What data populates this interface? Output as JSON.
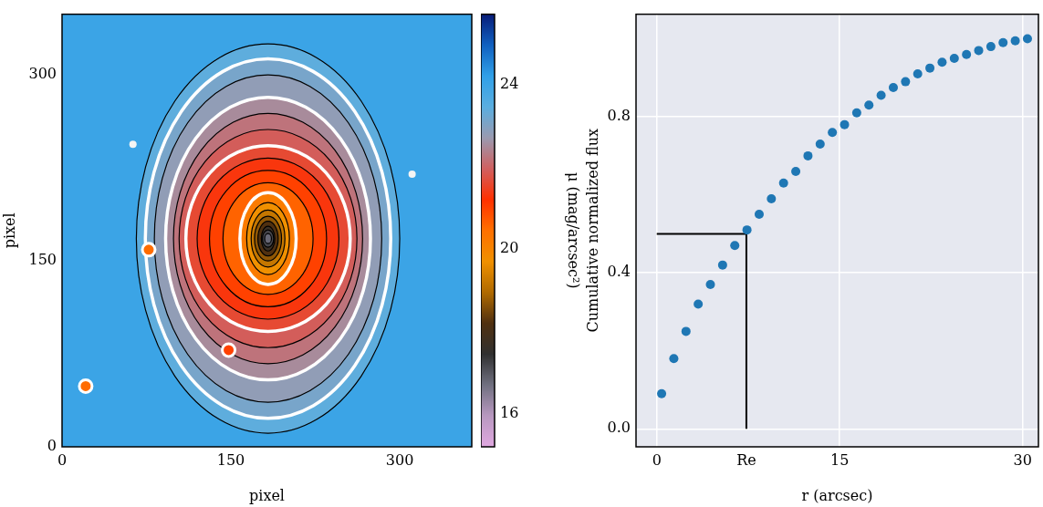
{
  "chart_data": [
    {
      "type": "image",
      "xlabel": "pixel",
      "ylabel": "pixel",
      "xlim": [
        0,
        364
      ],
      "ylim": [
        0,
        349
      ],
      "xticks": [
        0,
        150,
        300
      ],
      "yticks": [
        0,
        150,
        300
      ],
      "grid": false,
      "center": [
        183,
        168
      ],
      "background_mu": 24.0,
      "isophotes": [
        {
          "a": 117,
          "b": 157,
          "mu": 23.4,
          "color": "black"
        },
        {
          "a": 109,
          "b": 145,
          "mu": 23.1,
          "color": "white"
        },
        {
          "a": 101,
          "b": 132,
          "mu": 22.8,
          "color": "black"
        },
        {
          "a": 91,
          "b": 114,
          "mu": 22.5,
          "color": "white"
        },
        {
          "a": 84,
          "b": 101,
          "mu": 22.2,
          "color": "black"
        },
        {
          "a": 79,
          "b": 88,
          "mu": 21.9,
          "color": "black"
        },
        {
          "a": 73,
          "b": 75,
          "mu": 21.6,
          "color": "white"
        },
        {
          "a": 63,
          "b": 65,
          "mu": 21.3,
          "color": "black"
        },
        {
          "a": 52,
          "b": 55,
          "mu": 21.0,
          "color": "black"
        },
        {
          "a": 40,
          "b": 45,
          "mu": 20.6,
          "color": "black"
        },
        {
          "a": 25,
          "b": 37,
          "mu": 20.2,
          "color": "white"
        },
        {
          "a": 19,
          "b": 29,
          "mu": 19.7,
          "color": "black"
        },
        {
          "a": 15,
          "b": 23,
          "mu": 19.2,
          "color": "black"
        },
        {
          "a": 12,
          "b": 18,
          "mu": 18.7,
          "color": "black"
        },
        {
          "a": 9,
          "b": 14,
          "mu": 18.2,
          "color": "black"
        },
        {
          "a": 6,
          "b": 10,
          "mu": 17.7,
          "color": "black"
        },
        {
          "a": 5,
          "b": 7,
          "mu": 17.2,
          "color": "black"
        },
        {
          "a": 3,
          "b": 4,
          "mu": 16.8,
          "color": "black"
        }
      ],
      "sources": [
        {
          "x": 77,
          "y": 159,
          "mu": 20.5
        },
        {
          "x": 148,
          "y": 78,
          "mu": 21.0
        },
        {
          "x": 21,
          "y": 49,
          "mu": 20.5
        }
      ],
      "masked": [
        {
          "x": 63,
          "y": 244
        },
        {
          "x": 311,
          "y": 220
        }
      ],
      "colorbar": {
        "label": "μ (mag/arcsec²)",
        "range": [
          15.2,
          25.7
        ],
        "ticks": [
          16,
          20,
          24
        ],
        "colors": [
          "#e0a8e0",
          "#b898c0",
          "#707080",
          "#303030",
          "#503010",
          "#b06a00",
          "#f09000",
          "#ff7000",
          "#ff3000",
          "#d06060",
          "#9a9ab0",
          "#5aaee0",
          "#30a0e8",
          "#1060c0",
          "#081c78"
        ]
      }
    },
    {
      "type": "scatter",
      "xlabel": "r (arcsec)",
      "ylabel": "Cumulative normalized flux",
      "xlim": [
        -1.7,
        31.3
      ],
      "ylim": [
        -0.046,
        1.063
      ],
      "xticks": [
        0,
        {
          "value": 7.35,
          "label": "Re"
        },
        15,
        30
      ],
      "yticks": [
        {
          "value": 0,
          "label": "0.0"
        },
        0.4,
        0.8
      ],
      "grid": true,
      "color": "#1f77b4",
      "marker": "circle",
      "x": [
        0.4,
        1.4,
        2.4,
        3.4,
        4.4,
        5.4,
        6.4,
        7.4,
        8.4,
        9.4,
        10.4,
        11.4,
        12.4,
        13.4,
        14.4,
        15.4,
        16.4,
        17.4,
        18.4,
        19.4,
        20.4,
        21.4,
        22.4,
        23.4,
        24.4,
        25.4,
        26.4,
        27.4,
        28.4,
        29.4,
        30.4
      ],
      "values": [
        0.09,
        0.18,
        0.25,
        0.32,
        0.37,
        0.42,
        0.47,
        0.51,
        0.55,
        0.59,
        0.63,
        0.66,
        0.7,
        0.73,
        0.76,
        0.78,
        0.81,
        0.83,
        0.855,
        0.875,
        0.89,
        0.91,
        0.925,
        0.94,
        0.95,
        0.96,
        0.97,
        0.98,
        0.99,
        0.995,
        1.0
      ],
      "re_lines": {
        "x": 7.35,
        "y": 0.5,
        "x_start": 0,
        "y_start": 0,
        "color": "#000000"
      }
    }
  ]
}
